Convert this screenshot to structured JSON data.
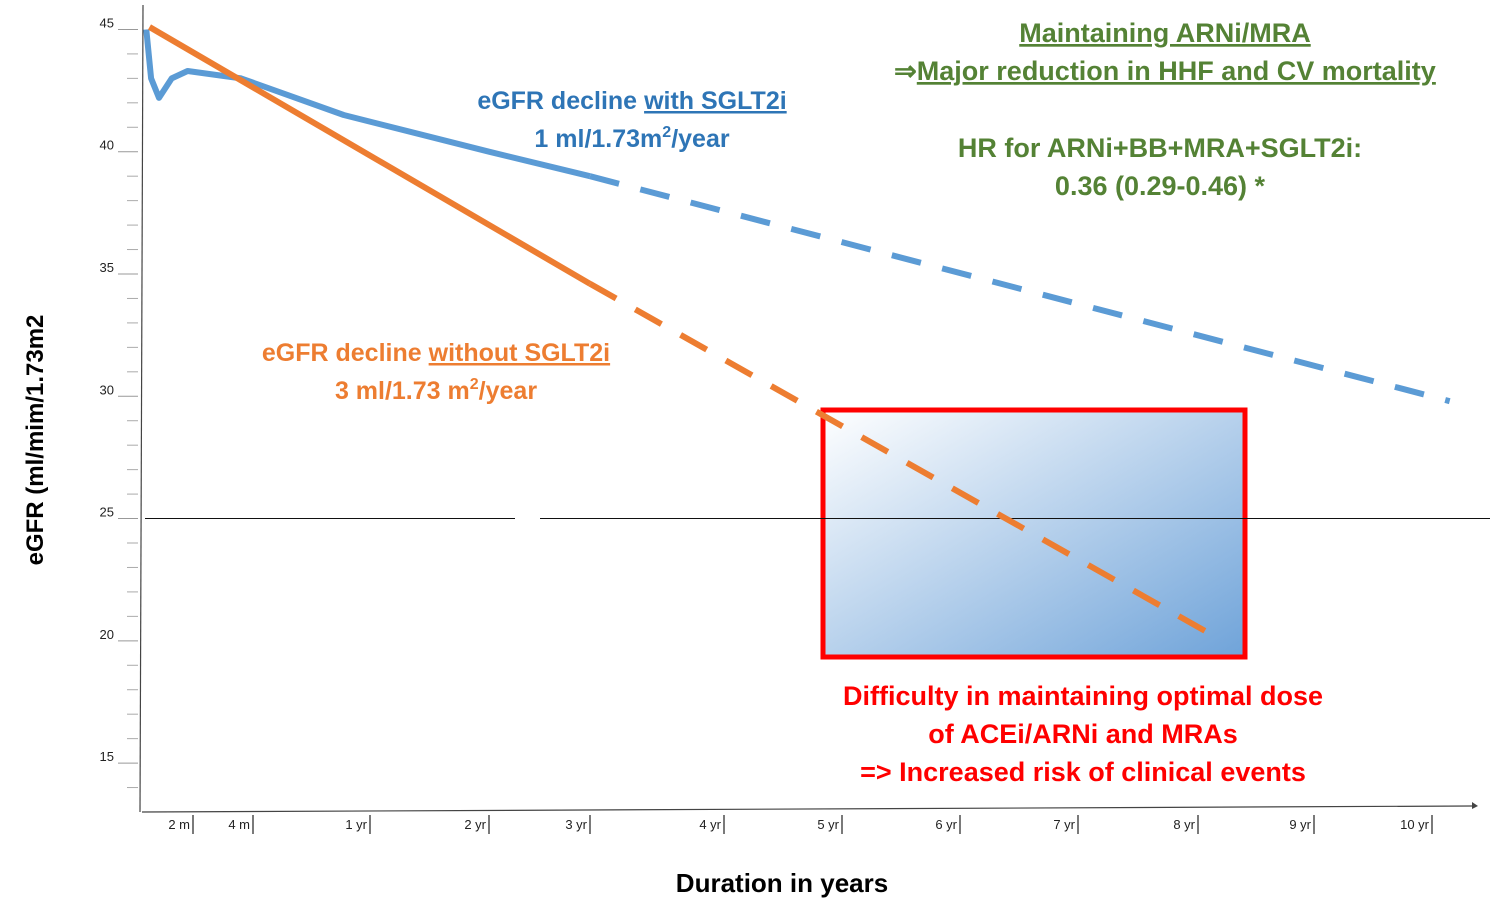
{
  "chart_data": {
    "type": "line",
    "ylabel": "eGFR (ml/mim/1.73m2",
    "xlabel": "Duration in years",
    "ylim": [
      13,
      46
    ],
    "yticks": [
      15,
      20,
      25,
      30,
      35,
      40,
      45
    ],
    "yticks_minor": [
      14,
      16,
      17,
      18,
      19,
      21,
      22,
      23,
      24,
      26,
      27,
      28,
      29,
      31,
      32,
      33,
      34,
      36,
      37,
      38,
      39,
      41,
      42,
      43,
      44
    ],
    "xticks": [
      {
        "value": 0.167,
        "label": "2 m"
      },
      {
        "value": 0.333,
        "label": "4 m"
      },
      {
        "value": 1,
        "label": "1 yr"
      },
      {
        "value": 2,
        "label": "2 yr"
      },
      {
        "value": 3,
        "label": "3 yr"
      },
      {
        "value": 4,
        "label": "4 yr"
      },
      {
        "value": 5,
        "label": "5 yr"
      },
      {
        "value": 6,
        "label": "6 yr"
      },
      {
        "value": 7,
        "label": "7 yr"
      },
      {
        "value": 8,
        "label": "8 yr"
      },
      {
        "value": 9,
        "label": "9 yr"
      },
      {
        "value": 10,
        "label": "10 yr"
      }
    ],
    "reference_line": 25,
    "series": [
      {
        "color": "#5b9bd5",
        "style": "solid",
        "x": [
          0.02,
          0.035,
          0.06,
          0.1,
          0.15,
          0.3,
          0.85,
          2.0,
          3.0
        ],
        "values": [
          45,
          43,
          42.2,
          43.0,
          43.3,
          43.0,
          41.5,
          40.0,
          39.0
        ]
      },
      {
        "color": "#5b9bd5",
        "style": "dashed",
        "x": [
          3.0,
          10.15
        ],
        "values": [
          39.0,
          29.8
        ]
      },
      {
        "color": "#ed7d31",
        "style": "solid",
        "x": [
          0.03,
          3.0
        ],
        "values": [
          45.1,
          34.6
        ]
      },
      {
        "color": "#ed7d31",
        "style": "dashed",
        "x": [
          3.0,
          8.1
        ],
        "values": [
          34.6,
          20.3
        ]
      }
    ],
    "annotations": {
      "with_sglt2i": {
        "prefix": "eGFR decline",
        "underlined": "with SGLT2i",
        "rate": "1 ml/1.73m",
        "sup": "2",
        "unit": "/year"
      },
      "without_sglt2i": {
        "prefix": "eGFR decline",
        "underlined": "without SGLT2i",
        "rate": "3 ml/1.73 m",
        "sup": "2",
        "unit": "/year"
      },
      "arni": {
        "line1": "Maintaining ARNi/MRA",
        "arrow": "⇒",
        "line2": "Major reduction in HHF and CV mortality",
        "hr_label": "HR for ARNi+BB+MRA+SGLT2i:",
        "hr_value": "0.36 (0.29-0.46) *"
      },
      "difficulty": [
        "Difficulty in maintaining optimal dose",
        "of ACEi/ARNi and MRAs",
        "=> Increased risk of clinical events"
      ]
    }
  }
}
